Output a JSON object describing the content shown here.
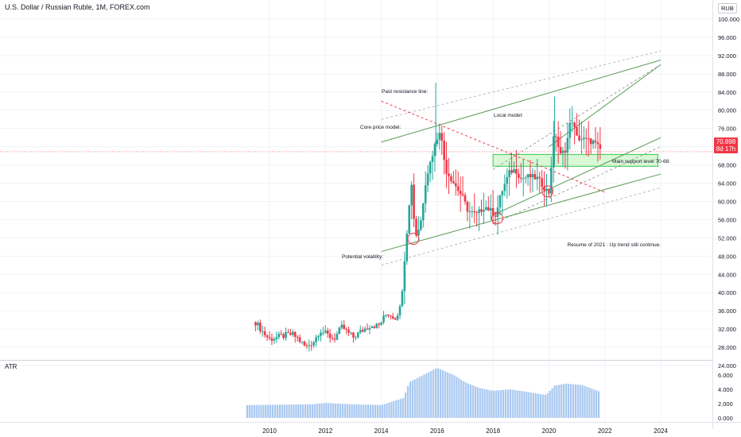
{
  "header": {
    "title": "U.S. Dollar / Russian Ruble, 1M, FOREX.com",
    "currency": "RUB",
    "last_price": "70.898",
    "countdown": "8d 17h"
  },
  "indicator": {
    "name": "ATR"
  },
  "colors": {
    "up": "#26a69a",
    "down": "#f23645",
    "channel": "#5b9a55",
    "dashed_resistance": "#f23645",
    "support_zone": "#baf3b5",
    "atr": "#a8c8f0"
  },
  "chart_data": [
    {
      "type": "candlestick",
      "ylim": [
        24,
        100
      ],
      "yticks": [
        24.0,
        28.0,
        32.0,
        36.0,
        40.0,
        44.0,
        48.0,
        52.0,
        56.0,
        60.0,
        64.0,
        68.0,
        72.0,
        76.0,
        80.0,
        84.0,
        88.0,
        92.0,
        96.0,
        100.0
      ],
      "ytick_labels": [
        "24.000",
        "28.000",
        "32.000",
        "36.000",
        "40.000",
        "44.000",
        "48.000",
        "52.000",
        "56.000",
        "60.000",
        "64.000",
        "68.000",
        "72.000",
        "76.000",
        "80.000",
        "84.000",
        "88.000",
        "92.000",
        "96.000",
        "100.000"
      ],
      "xlim": [
        2009.1,
        2024.2
      ],
      "xticks": [
        2010,
        2012,
        2014,
        2016,
        2018,
        2020,
        2022,
        2024
      ],
      "xtick_labels": [
        "2010",
        "2012",
        "2014",
        "2016",
        "2018",
        "2020",
        "2022",
        "2024"
      ],
      "keypoints": [
        [
          2009.5,
          33.5
        ],
        [
          2009.8,
          31.0
        ],
        [
          2010.0,
          29.8
        ],
        [
          2010.5,
          30.5
        ],
        [
          2010.8,
          30.9
        ],
        [
          2011.0,
          30.0
        ],
        [
          2011.3,
          28.0
        ],
        [
          2011.6,
          29.4
        ],
        [
          2011.8,
          31.8
        ],
        [
          2012.0,
          31.0
        ],
        [
          2012.3,
          29.8
        ],
        [
          2012.6,
          32.5
        ],
        [
          2012.8,
          31.2
        ],
        [
          2013.0,
          30.2
        ],
        [
          2013.3,
          31.6
        ],
        [
          2013.6,
          32.8
        ],
        [
          2013.9,
          32.7
        ],
        [
          2014.2,
          35.5
        ],
        [
          2014.5,
          34.5
        ],
        [
          2014.7,
          37.0
        ],
        [
          2014.8,
          45.0
        ],
        [
          2014.95,
          56.0
        ],
        [
          2015.1,
          65.0
        ],
        [
          2015.2,
          52.0
        ],
        [
          2015.4,
          55.0
        ],
        [
          2015.6,
          65.0
        ],
        [
          2015.9,
          72.0
        ],
        [
          2016.1,
          76.0
        ],
        [
          2016.3,
          67.0
        ],
        [
          2016.6,
          64.0
        ],
        [
          2016.9,
          61.0
        ],
        [
          2017.1,
          58.0
        ],
        [
          2017.4,
          57.0
        ],
        [
          2017.7,
          59.0
        ],
        [
          2017.9,
          58.0
        ],
        [
          2018.1,
          57.0
        ],
        [
          2018.3,
          62.0
        ],
        [
          2018.6,
          66.5
        ],
        [
          2018.8,
          67.0
        ],
        [
          2019.0,
          65.0
        ],
        [
          2019.3,
          65.5
        ],
        [
          2019.6,
          65.0
        ],
        [
          2019.9,
          62.5
        ],
        [
          2020.0,
          62.0
        ],
        [
          2020.2,
          76.0
        ],
        [
          2020.4,
          70.0
        ],
        [
          2020.6,
          71.5
        ],
        [
          2020.8,
          78.5
        ],
        [
          2021.0,
          74.0
        ],
        [
          2021.3,
          73.5
        ],
        [
          2021.6,
          73.0
        ],
        [
          2021.9,
          70.9
        ]
      ]
    },
    {
      "type": "histogram",
      "name": "ATR",
      "ylim": [
        0,
        7
      ],
      "yticks": [
        0.0,
        2.0,
        4.0,
        6.0
      ],
      "ytick_labels": [
        "0.000",
        "2.000",
        "4.000",
        "6.000"
      ],
      "keypoints": [
        [
          2009.2,
          1.8
        ],
        [
          2011.5,
          1.9
        ],
        [
          2012.0,
          2.1
        ],
        [
          2013.0,
          1.9
        ],
        [
          2014.0,
          1.8
        ],
        [
          2014.8,
          2.8
        ],
        [
          2015.0,
          5.0
        ],
        [
          2015.5,
          6.0
        ],
        [
          2016.0,
          7.0
        ],
        [
          2016.6,
          6.0
        ],
        [
          2017.0,
          5.0
        ],
        [
          2017.5,
          4.2
        ],
        [
          2018.0,
          3.8
        ],
        [
          2018.6,
          4.0
        ],
        [
          2019.3,
          3.6
        ],
        [
          2019.9,
          3.2
        ],
        [
          2020.2,
          4.5
        ],
        [
          2020.6,
          4.8
        ],
        [
          2021.2,
          4.6
        ],
        [
          2021.8,
          3.7
        ]
      ]
    }
  ],
  "annotations": {
    "past_resistance": "Past resistance line:",
    "core_price_model": "Core price model:",
    "local_model": "Local model:",
    "main_support": "Main support level 70-68:",
    "potential_volatility": "Potential volatility:",
    "resume": "Resume of 2021 : Up trend still continue."
  }
}
